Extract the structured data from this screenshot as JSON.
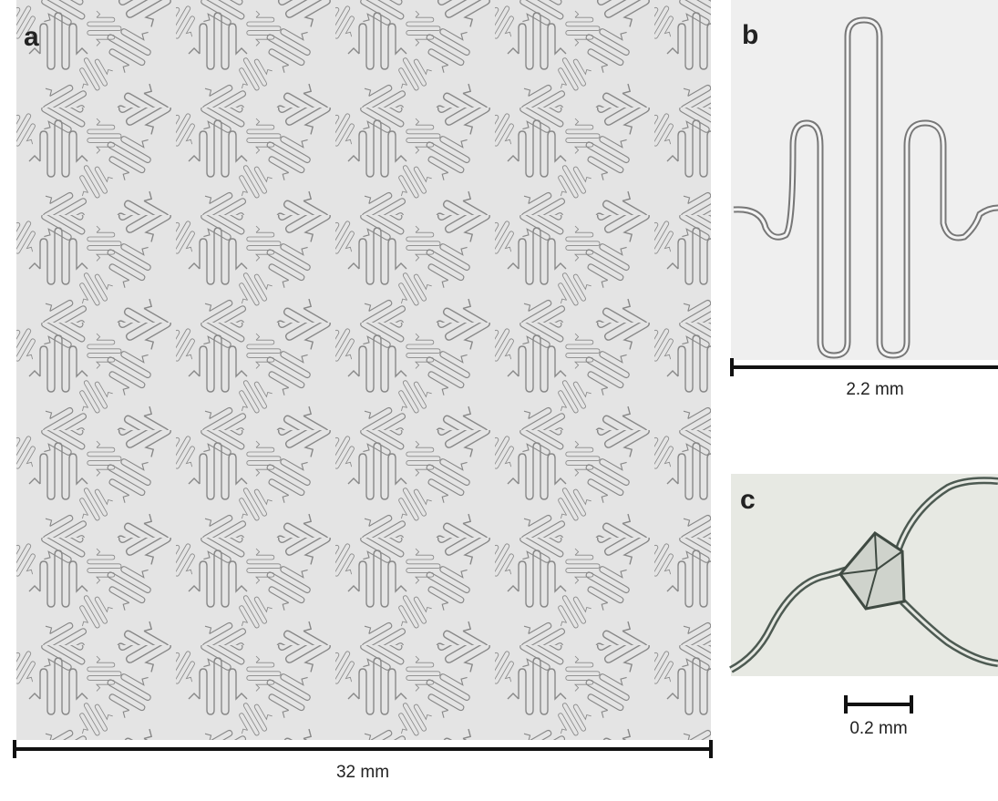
{
  "panels": [
    {
      "label": "a",
      "scale": "32 mm"
    },
    {
      "label": "b",
      "scale": "2.2 mm"
    },
    {
      "label": "c",
      "scale": "0.2 mm"
    }
  ]
}
